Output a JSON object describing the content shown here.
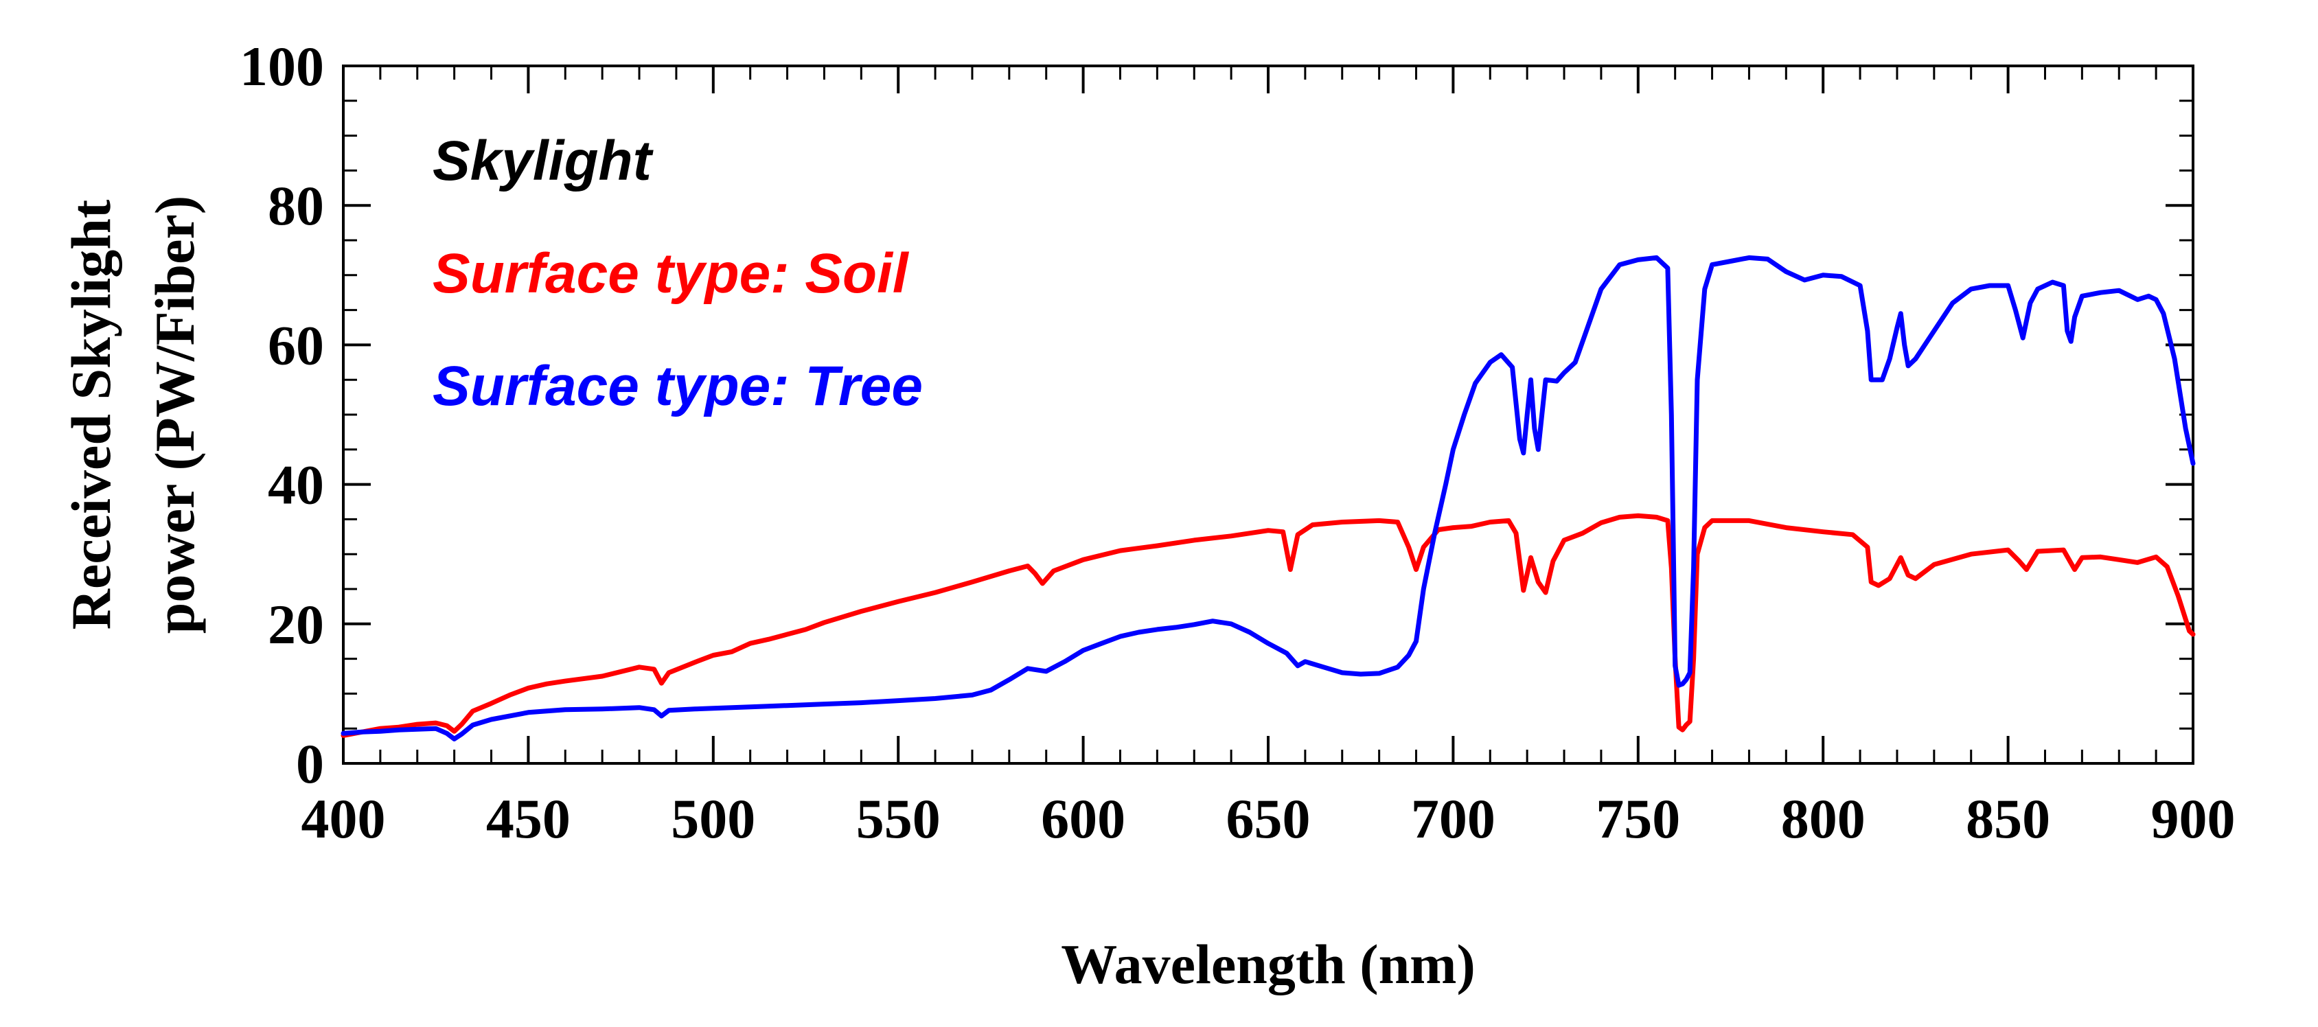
{
  "chart_data": {
    "type": "line",
    "title": "",
    "xlabel": "Wavelength (nm)",
    "ylabel_lines": [
      "Received Skylight",
      "power (PW/Fiber)"
    ],
    "xlim": [
      400,
      900
    ],
    "ylim": [
      0,
      100
    ],
    "xticks": [
      400,
      450,
      500,
      550,
      600,
      650,
      700,
      750,
      800,
      850,
      900
    ],
    "yticks": [
      0,
      20,
      40,
      60,
      80,
      100
    ],
    "x_minor_step": 10,
    "y_minor_step": 5,
    "grid": false,
    "legend": {
      "placement": "top-left",
      "title": "Skylight",
      "title_color": "#000000"
    },
    "series": [
      {
        "name": "Surface type: Soil",
        "color": "#ff0000",
        "points": [
          [
            400,
            4
          ],
          [
            405,
            4.5
          ],
          [
            410,
            5
          ],
          [
            415,
            5.2
          ],
          [
            420,
            5.6
          ],
          [
            425,
            5.8
          ],
          [
            428,
            5.4
          ],
          [
            430,
            4.6
          ],
          [
            432,
            5.6
          ],
          [
            435,
            7.5
          ],
          [
            440,
            8.6
          ],
          [
            445,
            9.8
          ],
          [
            450,
            10.8
          ],
          [
            455,
            11.4
          ],
          [
            460,
            11.8
          ],
          [
            470,
            12.5
          ],
          [
            480,
            13.8
          ],
          [
            484,
            13.5
          ],
          [
            486,
            11.5
          ],
          [
            488,
            13
          ],
          [
            495,
            14.5
          ],
          [
            500,
            15.5
          ],
          [
            505,
            16
          ],
          [
            510,
            17.2
          ],
          [
            515,
            17.8
          ],
          [
            520,
            18.5
          ],
          [
            525,
            19.2
          ],
          [
            530,
            20.2
          ],
          [
            540,
            21.8
          ],
          [
            550,
            23.2
          ],
          [
            560,
            24.5
          ],
          [
            570,
            26
          ],
          [
            580,
            27.6
          ],
          [
            585,
            28.3
          ],
          [
            587,
            27.2
          ],
          [
            589,
            25.8
          ],
          [
            592,
            27.6
          ],
          [
            600,
            29.2
          ],
          [
            610,
            30.5
          ],
          [
            620,
            31.2
          ],
          [
            630,
            32
          ],
          [
            640,
            32.6
          ],
          [
            650,
            33.4
          ],
          [
            654,
            33.2
          ],
          [
            656,
            27.8
          ],
          [
            658,
            32.8
          ],
          [
            662,
            34.2
          ],
          [
            670,
            34.6
          ],
          [
            680,
            34.8
          ],
          [
            685,
            34.6
          ],
          [
            688,
            31
          ],
          [
            690,
            27.8
          ],
          [
            692,
            31
          ],
          [
            696,
            33.5
          ],
          [
            700,
            33.8
          ],
          [
            705,
            34
          ],
          [
            710,
            34.6
          ],
          [
            715,
            34.8
          ],
          [
            717,
            33
          ],
          [
            719,
            24.8
          ],
          [
            721,
            29.5
          ],
          [
            723,
            26
          ],
          [
            725,
            24.5
          ],
          [
            727,
            29
          ],
          [
            730,
            32
          ],
          [
            735,
            33
          ],
          [
            740,
            34.5
          ],
          [
            745,
            35.3
          ],
          [
            750,
            35.5
          ],
          [
            755,
            35.3
          ],
          [
            758,
            34.8
          ],
          [
            759,
            28
          ],
          [
            760,
            15
          ],
          [
            761,
            5.2
          ],
          [
            762,
            4.8
          ],
          [
            763,
            5.5
          ],
          [
            764,
            6
          ],
          [
            765,
            15
          ],
          [
            766,
            30
          ],
          [
            768,
            33.8
          ],
          [
            770,
            34.8
          ],
          [
            780,
            34.8
          ],
          [
            790,
            33.8
          ],
          [
            800,
            33.2
          ],
          [
            808,
            32.8
          ],
          [
            812,
            31
          ],
          [
            813,
            26
          ],
          [
            815,
            25.5
          ],
          [
            818,
            26.5
          ],
          [
            821,
            29.5
          ],
          [
            823,
            27
          ],
          [
            825,
            26.5
          ],
          [
            830,
            28.5
          ],
          [
            840,
            30
          ],
          [
            850,
            30.6
          ],
          [
            853,
            29
          ],
          [
            855,
            27.8
          ],
          [
            858,
            30.4
          ],
          [
            865,
            30.6
          ],
          [
            868,
            27.8
          ],
          [
            870,
            29.5
          ],
          [
            875,
            29.6
          ],
          [
            880,
            29.2
          ],
          [
            885,
            28.8
          ],
          [
            890,
            29.6
          ],
          [
            893,
            28.2
          ],
          [
            896,
            24
          ],
          [
            899,
            19
          ],
          [
            900,
            18.5
          ]
        ]
      },
      {
        "name": "Surface type: Tree",
        "color": "#0000ff",
        "points": [
          [
            400,
            4.3
          ],
          [
            405,
            4.5
          ],
          [
            410,
            4.6
          ],
          [
            415,
            4.8
          ],
          [
            420,
            4.9
          ],
          [
            425,
            5
          ],
          [
            428,
            4.3
          ],
          [
            430,
            3.5
          ],
          [
            432,
            4.2
          ],
          [
            435,
            5.5
          ],
          [
            440,
            6.3
          ],
          [
            450,
            7.3
          ],
          [
            460,
            7.7
          ],
          [
            470,
            7.8
          ],
          [
            480,
            8
          ],
          [
            484,
            7.7
          ],
          [
            486,
            6.8
          ],
          [
            488,
            7.6
          ],
          [
            495,
            7.8
          ],
          [
            500,
            7.9
          ],
          [
            510,
            8.1
          ],
          [
            520,
            8.3
          ],
          [
            530,
            8.5
          ],
          [
            540,
            8.7
          ],
          [
            550,
            9
          ],
          [
            560,
            9.3
          ],
          [
            570,
            9.8
          ],
          [
            575,
            10.5
          ],
          [
            580,
            12
          ],
          [
            585,
            13.6
          ],
          [
            590,
            13.2
          ],
          [
            595,
            14.6
          ],
          [
            600,
            16.2
          ],
          [
            605,
            17.2
          ],
          [
            610,
            18.2
          ],
          [
            615,
            18.8
          ],
          [
            620,
            19.2
          ],
          [
            625,
            19.5
          ],
          [
            630,
            19.9
          ],
          [
            635,
            20.4
          ],
          [
            640,
            20
          ],
          [
            645,
            18.8
          ],
          [
            650,
            17.2
          ],
          [
            655,
            15.8
          ],
          [
            658,
            14
          ],
          [
            660,
            14.6
          ],
          [
            665,
            13.8
          ],
          [
            670,
            13
          ],
          [
            675,
            12.8
          ],
          [
            680,
            12.9
          ],
          [
            685,
            13.8
          ],
          [
            688,
            15.5
          ],
          [
            690,
            17.5
          ],
          [
            692,
            25
          ],
          [
            695,
            33
          ],
          [
            698,
            40
          ],
          [
            700,
            45
          ],
          [
            703,
            50
          ],
          [
            706,
            54.5
          ],
          [
            710,
            57.5
          ],
          [
            713,
            58.6
          ],
          [
            716,
            56.8
          ],
          [
            718,
            46.5
          ],
          [
            719,
            44.5
          ],
          [
            720,
            50
          ],
          [
            721,
            55
          ],
          [
            722,
            48
          ],
          [
            723,
            45
          ],
          [
            724,
            50
          ],
          [
            725,
            55
          ],
          [
            728,
            54.8
          ],
          [
            730,
            56
          ],
          [
            733,
            57.5
          ],
          [
            736,
            62
          ],
          [
            740,
            68
          ],
          [
            745,
            71.5
          ],
          [
            750,
            72.2
          ],
          [
            755,
            72.5
          ],
          [
            758,
            71
          ],
          [
            759,
            50
          ],
          [
            760,
            14
          ],
          [
            761,
            11.2
          ],
          [
            762,
            11.4
          ],
          [
            763,
            12
          ],
          [
            764,
            13
          ],
          [
            765,
            28
          ],
          [
            766,
            55
          ],
          [
            768,
            68
          ],
          [
            770,
            71.5
          ],
          [
            775,
            72
          ],
          [
            780,
            72.5
          ],
          [
            785,
            72.3
          ],
          [
            790,
            70.5
          ],
          [
            795,
            69.3
          ],
          [
            800,
            70
          ],
          [
            805,
            69.8
          ],
          [
            810,
            68.5
          ],
          [
            812,
            62
          ],
          [
            813,
            55
          ],
          [
            816,
            55
          ],
          [
            818,
            58
          ],
          [
            820,
            62.5
          ],
          [
            821,
            64.5
          ],
          [
            822,
            60
          ],
          [
            823,
            57
          ],
          [
            825,
            58
          ],
          [
            830,
            62
          ],
          [
            835,
            66
          ],
          [
            840,
            68
          ],
          [
            845,
            68.5
          ],
          [
            850,
            68.5
          ],
          [
            852,
            65
          ],
          [
            854,
            61
          ],
          [
            856,
            66
          ],
          [
            858,
            68
          ],
          [
            862,
            69
          ],
          [
            865,
            68.5
          ],
          [
            866,
            62
          ],
          [
            867,
            60.5
          ],
          [
            868,
            64
          ],
          [
            870,
            67
          ],
          [
            875,
            67.5
          ],
          [
            880,
            67.8
          ],
          [
            885,
            66.5
          ],
          [
            888,
            67
          ],
          [
            890,
            66.5
          ],
          [
            892,
            64.5
          ],
          [
            895,
            58
          ],
          [
            898,
            48
          ],
          [
            900,
            43
          ]
        ]
      }
    ]
  }
}
